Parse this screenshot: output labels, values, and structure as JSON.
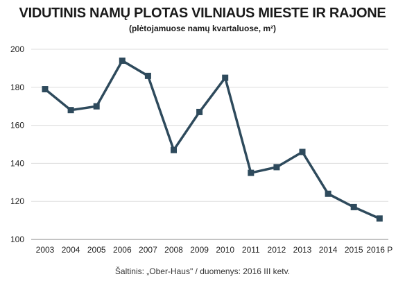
{
  "chart_data": {
    "type": "line",
    "title": "VIDUTINIS NAMŲ PLOTAS VILNIAUS MIESTE IR RAJONE",
    "subtitle": "(plėtojamuose namų kvartaluose, m²)",
    "source": "Šaltinis: „Ober-Haus\" / duomenys: 2016 III ketv.",
    "categories": [
      "2003",
      "2004",
      "2005",
      "2006",
      "2007",
      "2008",
      "2009",
      "2010",
      "2011",
      "2012",
      "2013",
      "2014",
      "2015",
      "2016 P"
    ],
    "values": [
      179,
      168,
      170,
      194,
      186,
      147,
      167,
      185,
      135,
      138,
      146,
      124,
      117,
      111
    ],
    "ylim": [
      100,
      200
    ],
    "yticks": [
      100,
      120,
      140,
      160,
      180,
      200
    ],
    "grid": true,
    "xlabel": "",
    "ylabel": "",
    "line_color": "#2e4a5c",
    "grid_color": "#dddddd"
  }
}
